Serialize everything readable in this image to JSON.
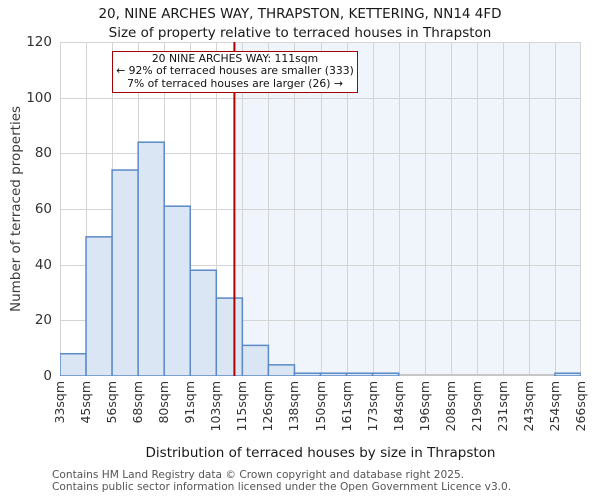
{
  "header": {
    "title": "20, NINE ARCHES WAY, THRAPSTON, KETTERING, NN14 4FD",
    "subtitle": "Size of property relative to terraced houses in Thrapston"
  },
  "chart_data": {
    "type": "bar",
    "title": "20, NINE ARCHES WAY, THRAPSTON, KETTERING, NN14 4FD",
    "subtitle": "Size of property relative to terraced houses in Thrapston",
    "xlabel": "Distribution of terraced houses by size in Thrapston",
    "ylabel": "Number of terraced properties",
    "x_tick_labels": [
      "33sqm",
      "45sqm",
      "56sqm",
      "68sqm",
      "80sqm",
      "91sqm",
      "103sqm",
      "115sqm",
      "126sqm",
      "138sqm",
      "150sqm",
      "161sqm",
      "173sqm",
      "184sqm",
      "196sqm",
      "208sqm",
      "219sqm",
      "231sqm",
      "243sqm",
      "254sqm",
      "266sqm"
    ],
    "values": [
      8,
      50,
      74,
      84,
      61,
      38,
      28,
      11,
      4,
      1,
      1,
      1,
      1,
      0,
      0,
      0,
      0,
      0,
      0,
      1
    ],
    "xlim": [
      33,
      266
    ],
    "ylim": [
      0,
      120
    ],
    "y_ticks": [
      0,
      20,
      40,
      60,
      80,
      100,
      120
    ],
    "grid": true,
    "marker": {
      "sqm": 111,
      "label": "111sqm"
    },
    "shaded_region": {
      "from_sqm": 111,
      "to_sqm": 266
    },
    "annotation": {
      "lines": [
        "20 NINE ARCHES WAY: 111sqm",
        "← 92% of terraced houses are smaller (333)",
        "7% of terraced houses are larger (26) →"
      ]
    },
    "colors": {
      "bar_fill": "#dbe6f4",
      "bar_edge": "#5b8ac7",
      "marker_line": "#b00000",
      "annotation_border": "#a40000",
      "shade": "#f0f4fb",
      "grid": "#d4d4d4",
      "axis": "#c6c6c6"
    }
  },
  "footer": {
    "line1": "Contains HM Land Registry data © Crown copyright and database right 2025.",
    "line2": "Contains public sector information licensed under the Open Government Licence v3.0."
  }
}
